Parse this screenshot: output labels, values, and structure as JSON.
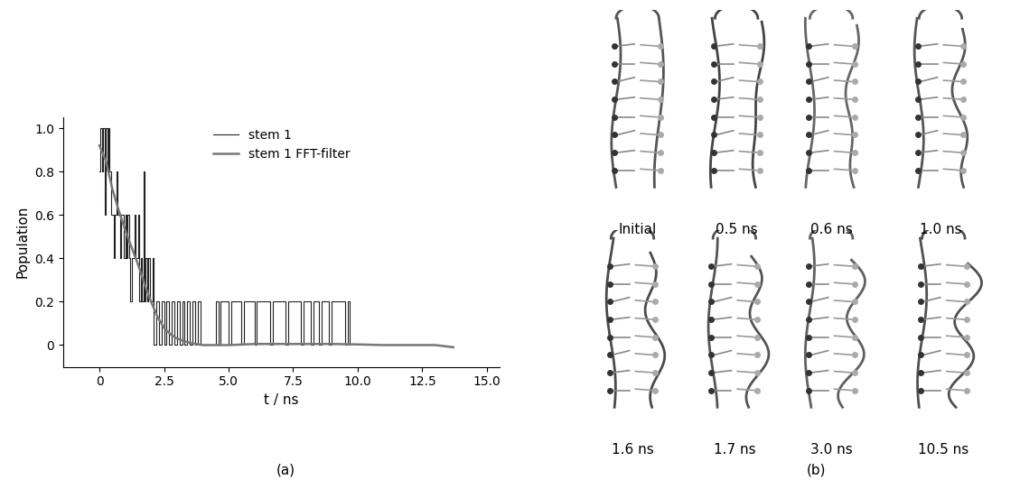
{
  "chart_data": {
    "type": "line",
    "x_label": "t / ns",
    "y_label": "Population",
    "panel_label": "(a)",
    "xlim": [
      -1.4,
      15.5
    ],
    "ylim": [
      -0.1,
      1.05
    ],
    "xticks": [
      0,
      2.5,
      {
        "value": 5,
        "label": "5.0"
      },
      7.5,
      {
        "value": 10,
        "label": "10.0"
      },
      12.5,
      {
        "value": 15,
        "label": "15.0"
      }
    ],
    "yticks": [
      0,
      0.2,
      0.4,
      0.6,
      0.8,
      {
        "value": 1,
        "label": "1.0"
      }
    ],
    "legend": "upper center",
    "grid": false,
    "series": [
      {
        "name": "stem 1",
        "color": "#222222",
        "line_style": "steps",
        "x": [
          0,
          0.05,
          0.1,
          0.15,
          0.2,
          0.25,
          0.3,
          0.35,
          0.4,
          0.45,
          0.5,
          0.55,
          0.6,
          0.65,
          0.7,
          0.75,
          0.8,
          0.85,
          0.9,
          0.95,
          1.0,
          1.05,
          1.1,
          1.15,
          1.2,
          1.25,
          1.3,
          1.35,
          1.4,
          1.45,
          1.5,
          1.55,
          1.6,
          1.65,
          1.7,
          1.75,
          1.8,
          1.85,
          1.9,
          1.95,
          2.0,
          2.05,
          2.1,
          2.2,
          2.3,
          2.4,
          2.5,
          2.6,
          2.7,
          2.8,
          2.9,
          3.0,
          3.1,
          3.2,
          3.3,
          3.4,
          3.5,
          3.6,
          3.7,
          3.8,
          3.9,
          4.0,
          4.5,
          4.6,
          4.7,
          5.0,
          5.1,
          5.5,
          5.6,
          6.0,
          6.1,
          6.6,
          6.7,
          7.2,
          7.3,
          7.8,
          7.9,
          8.2,
          8.3,
          8.5,
          8.6,
          8.9,
          9.0,
          9.5,
          9.6,
          9.7
        ],
        "values": [
          0.8,
          1.0,
          0.8,
          1.0,
          0.6,
          1.0,
          0.8,
          1.0,
          0.8,
          0.6,
          0.6,
          0.4,
          0.6,
          0.8,
          0.6,
          0.6,
          0.4,
          0.6,
          0.6,
          0.4,
          0.6,
          0.4,
          0.6,
          0.4,
          0.2,
          0.4,
          0.4,
          0.6,
          0.4,
          0.4,
          0.6,
          0.2,
          0.4,
          0.2,
          0.8,
          0.2,
          0.4,
          0.2,
          0.4,
          0.2,
          0.2,
          0.4,
          0,
          0.2,
          0,
          0.2,
          0,
          0.2,
          0,
          0.2,
          0,
          0.2,
          0,
          0.2,
          0,
          0.2,
          0,
          0.2,
          0,
          0.2,
          0,
          0,
          0.2,
          0,
          0.2,
          0,
          0.2,
          0,
          0.2,
          0,
          0.2,
          0,
          0.2,
          0,
          0.2,
          0,
          0.2,
          0,
          0.2,
          0,
          0.2,
          0,
          0.2,
          0,
          0.2,
          0
        ]
      },
      {
        "name": "stem 1 FFT-filter",
        "color": "#777777",
        "line_style": "solid",
        "x": [
          0,
          0.25,
          0.5,
          0.75,
          1.0,
          1.25,
          1.5,
          1.75,
          2.0,
          2.25,
          2.5,
          2.75,
          3.0,
          3.5,
          4.0,
          5.0,
          6.0,
          7.0,
          8.0,
          9.0,
          10.0,
          11.0,
          12.0,
          13.0,
          13.7
        ],
        "values": [
          0.92,
          0.85,
          0.72,
          0.62,
          0.53,
          0.45,
          0.37,
          0.28,
          0.2,
          0.13,
          0.08,
          0.05,
          0.03,
          0.01,
          0.0,
          0.0,
          0.005,
          0.005,
          0.005,
          0.005,
          0.003,
          0.0,
          0.0,
          0.0,
          -0.01
        ]
      }
    ]
  },
  "snapshots": {
    "panel_label": "(b)",
    "labels": [
      "Initial",
      "0.5 ns",
      "0.6 ns",
      "1.0 ns",
      "1.6 ns",
      "1.7 ns",
      "3.0 ns",
      "10.5 ns"
    ]
  }
}
